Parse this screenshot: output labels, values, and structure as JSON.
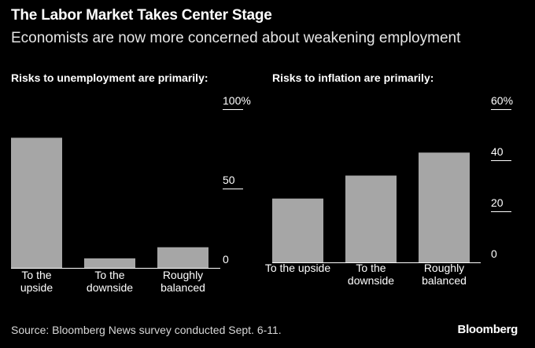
{
  "header": {
    "title": "The Labor Market Takes Center Stage",
    "subtitle": "Economists are now more concerned about weakening employment"
  },
  "footer": {
    "source": "Source: Bloomberg News survey conducted Sept. 6-11.",
    "logo": "Bloomberg"
  },
  "colors": {
    "background": "#000000",
    "bar": "#a6a6a6",
    "text": "#ffffff",
    "axis": "#ffffff"
  },
  "chart_data": [
    {
      "type": "bar",
      "title": "Risks to unemployment are primarily:",
      "categories": [
        [
          "To the",
          "upside"
        ],
        [
          "To the",
          "downside"
        ],
        [
          "Roughly",
          "balanced"
        ]
      ],
      "values": [
        82,
        6,
        13
      ],
      "ylim": [
        0,
        100
      ],
      "ticks": [
        "100%",
        "50",
        "0"
      ],
      "tick_values": [
        100,
        50,
        0
      ],
      "grid": false,
      "axis_side": "right"
    },
    {
      "type": "bar",
      "title": "Risks to inflation are primarily:",
      "categories": [
        [
          "To the upside"
        ],
        [
          "To the",
          "downside"
        ],
        [
          "Roughly",
          "balanced"
        ]
      ],
      "values": [
        25,
        34,
        43
      ],
      "ylim": [
        0,
        60
      ],
      "ticks": [
        "60%",
        "40",
        "20",
        "0"
      ],
      "tick_values": [
        60,
        40,
        20,
        0
      ],
      "grid": false,
      "axis_side": "right"
    }
  ]
}
